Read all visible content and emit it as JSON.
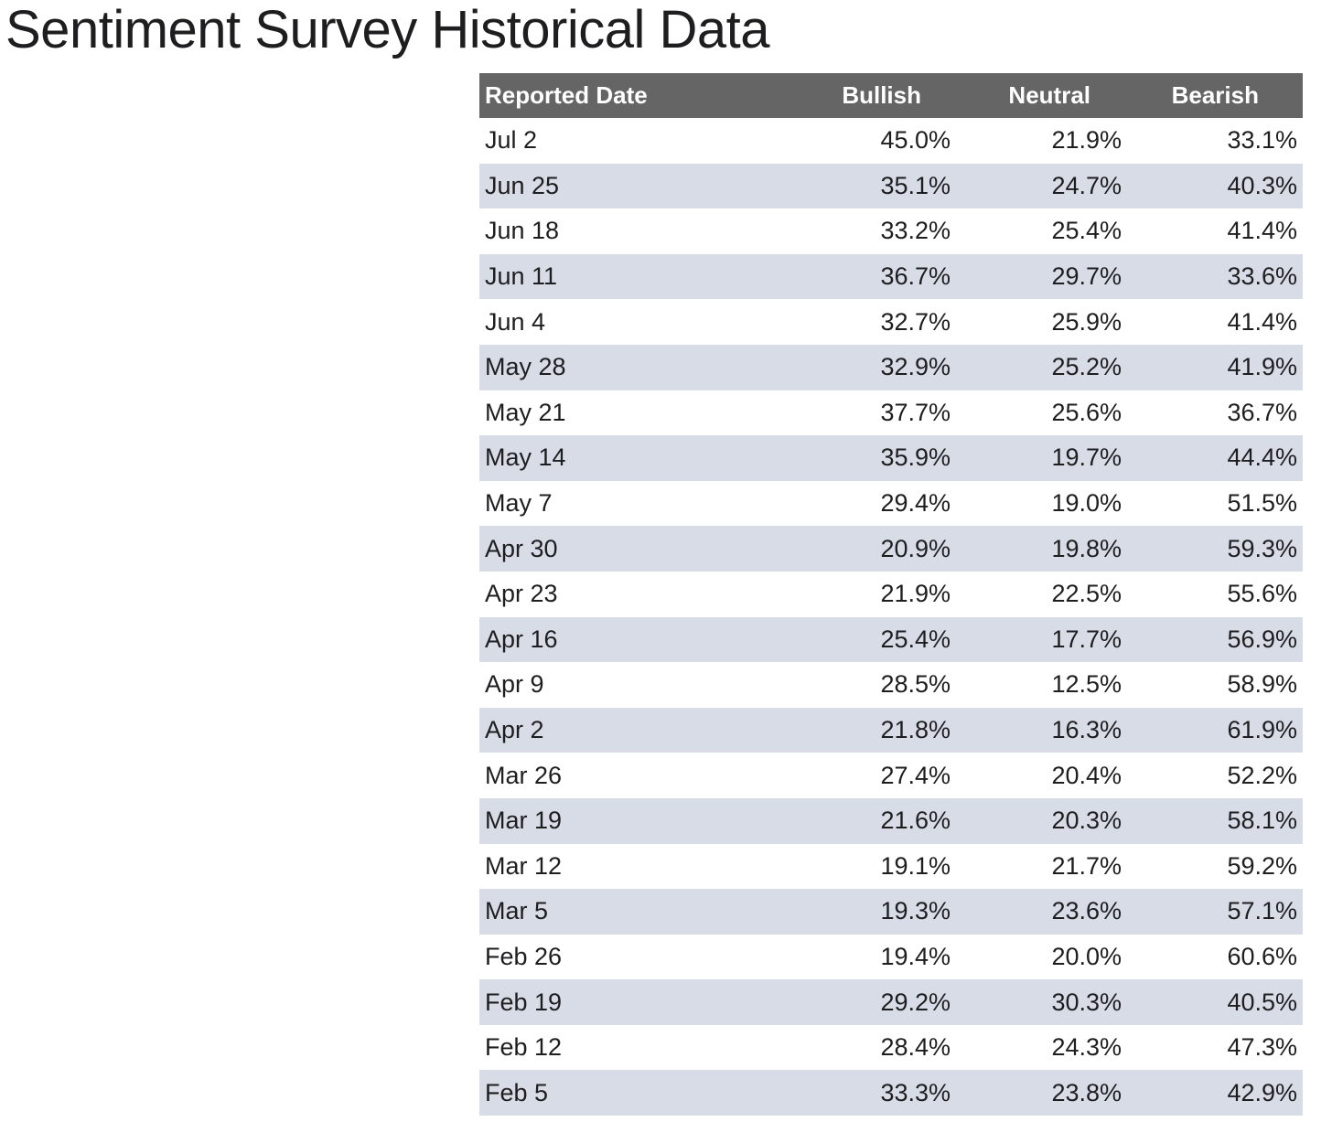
{
  "page": {
    "title": "Sentiment Survey Historical Data"
  },
  "table": {
    "headers": {
      "date": "Reported Date",
      "bullish": "Bullish",
      "neutral": "Neutral",
      "bearish": "Bearish"
    },
    "colors": {
      "header_bg": "#656565",
      "header_text": "#ffffff",
      "stripe_bg": "#d7dce6",
      "body_text": "#1e1e20"
    },
    "rows": [
      {
        "date": "Jul 2",
        "bullish": "45.0%",
        "neutral": "21.9%",
        "bearish": "33.1%"
      },
      {
        "date": "Jun 25",
        "bullish": "35.1%",
        "neutral": "24.7%",
        "bearish": "40.3%"
      },
      {
        "date": "Jun 18",
        "bullish": "33.2%",
        "neutral": "25.4%",
        "bearish": "41.4%"
      },
      {
        "date": "Jun 11",
        "bullish": "36.7%",
        "neutral": "29.7%",
        "bearish": "33.6%"
      },
      {
        "date": "Jun 4",
        "bullish": "32.7%",
        "neutral": "25.9%",
        "bearish": "41.4%"
      },
      {
        "date": "May 28",
        "bullish": "32.9%",
        "neutral": "25.2%",
        "bearish": "41.9%"
      },
      {
        "date": "May 21",
        "bullish": "37.7%",
        "neutral": "25.6%",
        "bearish": "36.7%"
      },
      {
        "date": "May 14",
        "bullish": "35.9%",
        "neutral": "19.7%",
        "bearish": "44.4%"
      },
      {
        "date": "May 7",
        "bullish": "29.4%",
        "neutral": "19.0%",
        "bearish": "51.5%"
      },
      {
        "date": "Apr 30",
        "bullish": "20.9%",
        "neutral": "19.8%",
        "bearish": "59.3%"
      },
      {
        "date": "Apr 23",
        "bullish": "21.9%",
        "neutral": "22.5%",
        "bearish": "55.6%"
      },
      {
        "date": "Apr 16",
        "bullish": "25.4%",
        "neutral": "17.7%",
        "bearish": "56.9%"
      },
      {
        "date": "Apr 9",
        "bullish": "28.5%",
        "neutral": "12.5%",
        "bearish": "58.9%"
      },
      {
        "date": "Apr 2",
        "bullish": "21.8%",
        "neutral": "16.3%",
        "bearish": "61.9%"
      },
      {
        "date": "Mar 26",
        "bullish": "27.4%",
        "neutral": "20.4%",
        "bearish": "52.2%"
      },
      {
        "date": "Mar 19",
        "bullish": "21.6%",
        "neutral": "20.3%",
        "bearish": "58.1%"
      },
      {
        "date": "Mar 12",
        "bullish": "19.1%",
        "neutral": "21.7%",
        "bearish": "59.2%"
      },
      {
        "date": "Mar 5",
        "bullish": "19.3%",
        "neutral": "23.6%",
        "bearish": "57.1%"
      },
      {
        "date": "Feb 26",
        "bullish": "19.4%",
        "neutral": "20.0%",
        "bearish": "60.6%"
      },
      {
        "date": "Feb 19",
        "bullish": "29.2%",
        "neutral": "30.3%",
        "bearish": "40.5%"
      },
      {
        "date": "Feb 12",
        "bullish": "28.4%",
        "neutral": "24.3%",
        "bearish": "47.3%"
      },
      {
        "date": "Feb 5",
        "bullish": "33.3%",
        "neutral": "23.8%",
        "bearish": "42.9%"
      }
    ]
  }
}
